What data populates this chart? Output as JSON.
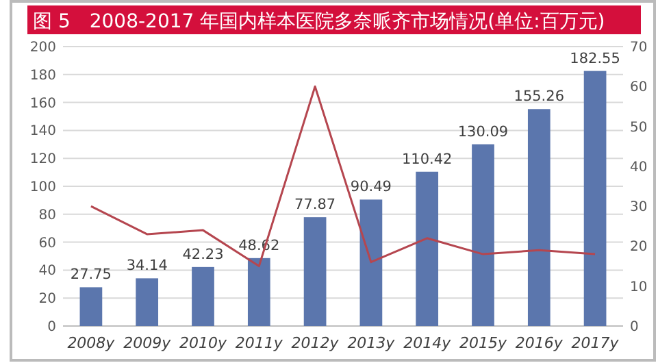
{
  "chart_data": {
    "type": "bar",
    "title": "图 5　2008-2017 年国内样本医院多奈哌齐市场情况(单位:百万元)",
    "categories": [
      "2008y",
      "2009y",
      "2010y",
      "2011y",
      "2012y",
      "2013y",
      "2014y",
      "2015y",
      "2016y",
      "2017y"
    ],
    "series": [
      {
        "color": "#5b76ad",
        "values": [
          27.75,
          34.14,
          42.23,
          48.62,
          77.87,
          90.49,
          110.42,
          130.09,
          155.26,
          182.55
        ],
        "value_labels": [
          "27.75",
          "34.14",
          "42.23",
          "48.62",
          "77.87",
          "90.49",
          "110.42",
          "130.09",
          "155.26",
          "182.55"
        ]
      },
      {
        "type": "line",
        "axis": "y2",
        "color": "#b5464f",
        "values": [
          30,
          23,
          24,
          15,
          60,
          16,
          22,
          18,
          19,
          18
        ]
      }
    ],
    "ylim": [
      0,
      200
    ],
    "yticks": [
      0,
      20,
      40,
      60,
      80,
      100,
      120,
      140,
      160,
      180,
      200
    ],
    "y2lim": [
      0,
      70
    ],
    "y2ticks": [
      0,
      10,
      20,
      30,
      40,
      50,
      60,
      70
    ],
    "grid": "y"
  }
}
